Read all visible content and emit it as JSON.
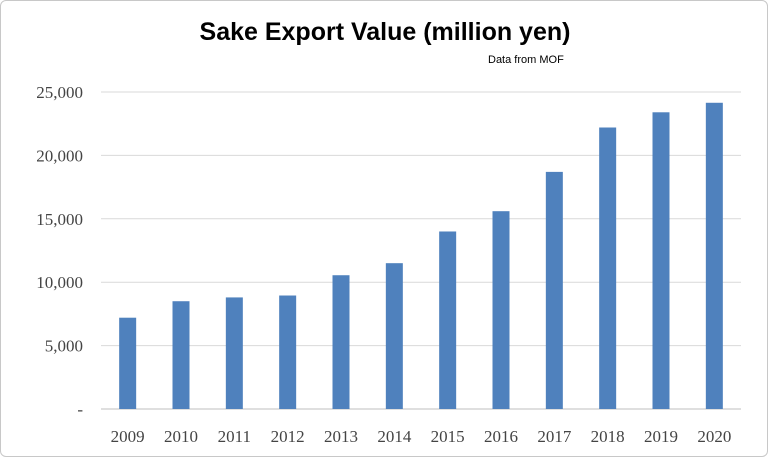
{
  "chart_data": {
    "type": "bar",
    "title": "Sake Export Value (million yen)",
    "subtitle": "Data from MOF",
    "xlabel": "",
    "ylabel": "",
    "categories": [
      "2009",
      "2010",
      "2011",
      "2012",
      "2013",
      "2014",
      "2015",
      "2016",
      "2017",
      "2018",
      "2019",
      "2020"
    ],
    "values": [
      7200,
      8500,
      8800,
      8950,
      10550,
      11500,
      14000,
      15600,
      18700,
      22200,
      23400,
      24150
    ],
    "ylim": [
      0,
      25000
    ],
    "yticks": [
      0,
      5000,
      10000,
      15000,
      20000,
      25000
    ],
    "ytick_labels": [
      "-",
      "5,000",
      "10,000",
      "15,000",
      "20,000",
      "25,000"
    ],
    "grid": true,
    "legend": "none",
    "bar_color": "#4f81bd",
    "grid_color": "#d9d9d9"
  }
}
